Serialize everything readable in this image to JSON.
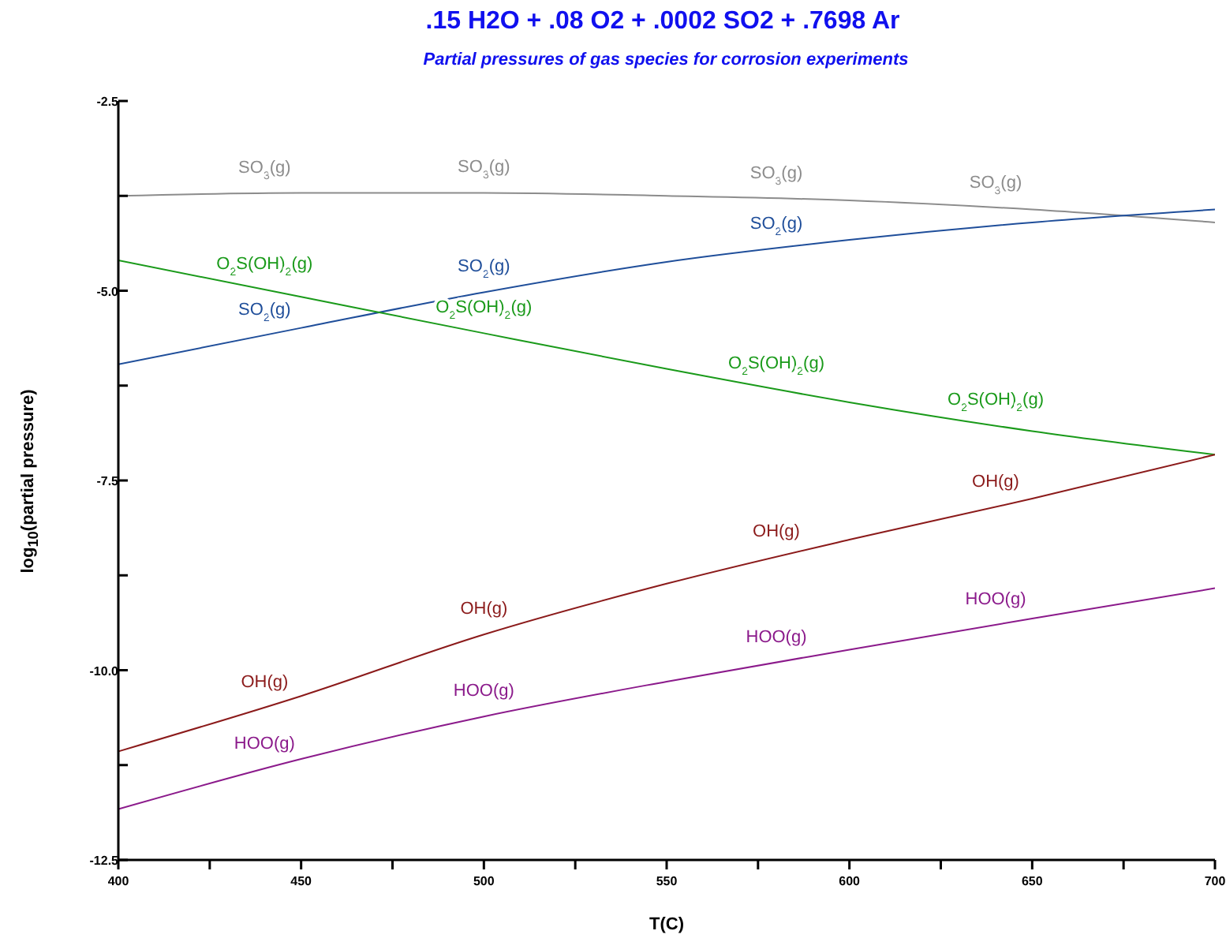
{
  "chart_data": {
    "type": "line",
    "title": ".15 H2O +  .08 O2 +  .0002 SO2 +  .7698 Ar",
    "subtitle": "Partial pressures of gas species for corrosion experiments",
    "xlabel": "T(C)",
    "ylabel": "log$_{10}$(partial pressure)",
    "x": [
      400,
      450,
      500,
      550,
      600,
      650,
      700
    ],
    "series": [
      {
        "color": "#8c8c8c",
        "values": [
          -3.75,
          -3.71,
          -3.71,
          -3.75,
          -3.81,
          -3.93,
          -4.1
        ]
      },
      {
        "color": "#1f4e9a",
        "values": [
          -5.97,
          -5.49,
          -5.02,
          -4.62,
          -4.33,
          -4.1,
          -3.93
        ]
      },
      {
        "color": "#1a9a1a",
        "values": [
          -4.6,
          -5.08,
          -5.56,
          -6.03,
          -6.47,
          -6.85,
          -7.16
        ]
      },
      {
        "color": "#8b1a1a",
        "values": [
          -11.07,
          -10.34,
          -9.53,
          -8.86,
          -8.28,
          -7.74,
          -7.16
        ]
      },
      {
        "color": "#8b1a8b",
        "values": [
          -11.83,
          -11.17,
          -10.61,
          -10.15,
          -9.73,
          -9.32,
          -8.92
        ]
      }
    ],
    "annotations": [
      {
        "text": "SO$_{3}$(g)",
        "x": 440,
        "y": -3.72
      },
      {
        "text": "SO$_{3}$(g)",
        "x": 500,
        "y": -3.71
      },
      {
        "text": "SO$_{3}$(g)",
        "x": 580,
        "y": -3.79
      },
      {
        "text": "SO$_{3}$(g)",
        "x": 640,
        "y": -3.91
      },
      {
        "text": "SO$_{2}$(g)",
        "x": 440,
        "y": -5.59
      },
      {
        "text": "SO$_{2}$(g)",
        "x": 500,
        "y": -5.02
      },
      {
        "text": "SO$_{2}$(g)",
        "x": 580,
        "y": -4.45
      },
      {
        "text": "O$_{2}$S(OH)$_{2}$(g)",
        "x": 440,
        "y": -4.98
      },
      {
        "text": "O$_{2}$S(OH)$_{2}$(g)",
        "x": 500,
        "y": -5.56
      },
      {
        "text": "O$_{2}$S(OH)$_{2}$(g)",
        "x": 580,
        "y": -6.29
      },
      {
        "text": "O$_{2}$S(OH)$_{2}$(g)",
        "x": 640,
        "y": -6.77
      },
      {
        "text": "OH(g)",
        "x": 440,
        "y": -10.49
      },
      {
        "text": "OH(g)",
        "x": 500,
        "y": -9.53
      },
      {
        "text": "OH(g)",
        "x": 580,
        "y": -8.51
      },
      {
        "text": "OH(g)",
        "x": 640,
        "y": -7.85
      },
      {
        "text": "HOO(g)",
        "x": 440,
        "y": -11.3
      },
      {
        "text": "HOO(g)",
        "x": 500,
        "y": -10.61
      },
      {
        "text": "HOO(g)",
        "x": 580,
        "y": -9.9
      },
      {
        "text": "HOO(g)",
        "x": 640,
        "y": -9.4
      }
    ],
    "xlim": [
      400,
      700
    ],
    "xticks": [
      400,
      {
        "value": 425,
        "label": null
      },
      450,
      {
        "value": 475,
        "label": null
      },
      500,
      {
        "value": 525,
        "label": null
      },
      550,
      {
        "value": 575,
        "label": null
      },
      600,
      {
        "value": 625,
        "label": null
      },
      650,
      {
        "value": 675,
        "label": null
      },
      700
    ],
    "ylim": [
      -12.5,
      -2.5
    ],
    "yticks": [
      -12.5,
      {
        "value": -11.25,
        "label": null
      },
      {
        "value": -10,
        "label": "-10.0"
      },
      {
        "value": -8.75,
        "label": null
      },
      -7.5,
      {
        "value": -6.25,
        "label": null
      },
      {
        "value": -5,
        "label": "-5.0"
      },
      {
        "value": -3.75,
        "label": null
      },
      -2.5
    ],
    "grid": false,
    "legend": false,
    "marker": "none",
    "line_style": "solid"
  }
}
